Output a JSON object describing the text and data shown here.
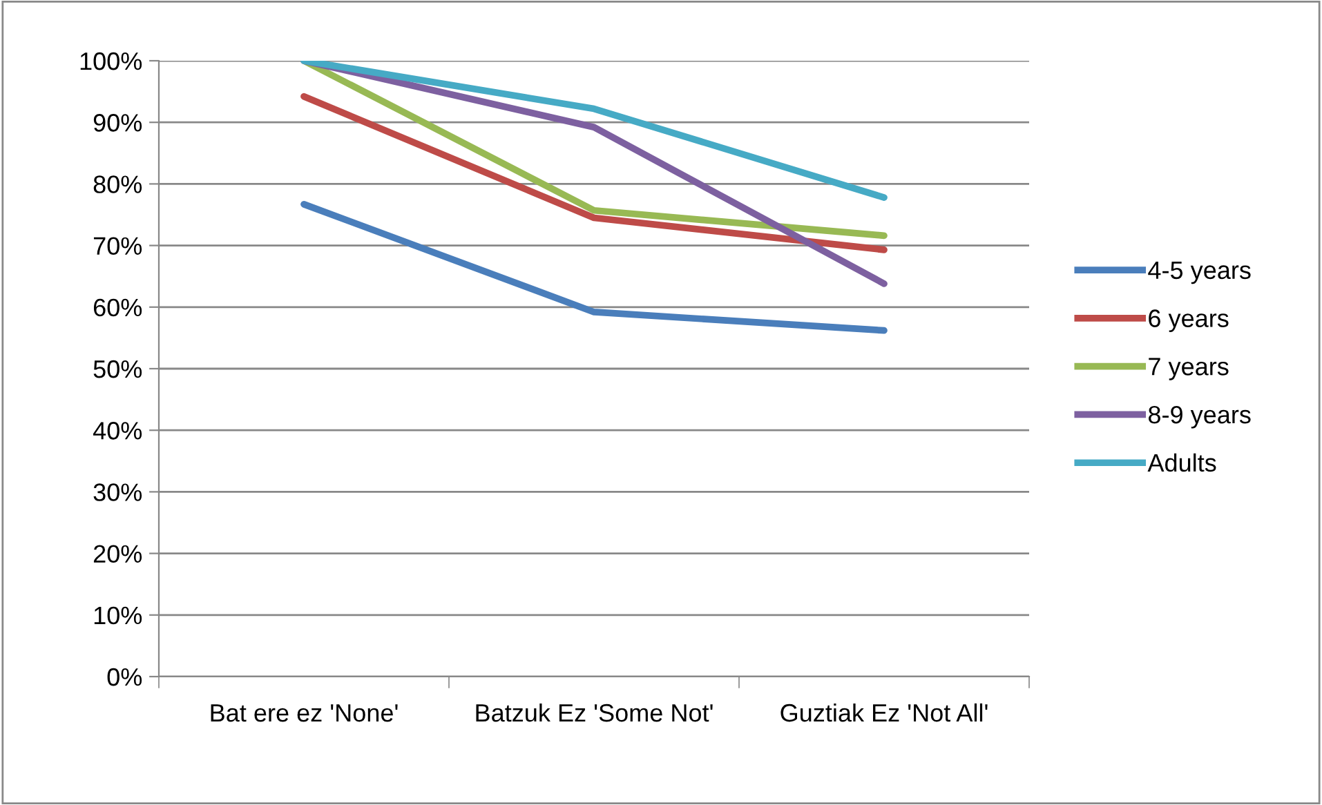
{
  "chart_data": {
    "type": "line",
    "categories": [
      "Bat ere ez 'None'",
      "Batzuk Ez 'Some Not'",
      "Guztiak Ez 'Not All'"
    ],
    "series": [
      {
        "name": "4-5 years",
        "color": "#4a7ebb",
        "values": [
          76.7,
          59.2,
          56.2
        ]
      },
      {
        "name": "6 years",
        "color": "#be4b48",
        "values": [
          94.2,
          74.5,
          69.3
        ]
      },
      {
        "name": "7 years",
        "color": "#98b954",
        "values": [
          100,
          75.7,
          71.6
        ]
      },
      {
        "name": "8-9 years",
        "color": "#7d60a0",
        "values": [
          100,
          89.2,
          63.8
        ]
      },
      {
        "name": "Adults",
        "color": "#46aac5",
        "values": [
          100,
          92.2,
          77.8
        ]
      }
    ],
    "ylim": [
      0,
      100
    ],
    "yticks": [
      {
        "value": 0,
        "label": "0%"
      },
      {
        "value": 10,
        "label": "10%"
      },
      {
        "value": 20,
        "label": "20%"
      },
      {
        "value": 30,
        "label": "30%"
      },
      {
        "value": 40,
        "label": "40%"
      },
      {
        "value": 50,
        "label": "50%"
      },
      {
        "value": 60,
        "label": "60%"
      },
      {
        "value": 70,
        "label": "70%"
      },
      {
        "value": 80,
        "label": "80%"
      },
      {
        "value": 90,
        "label": "90%"
      },
      {
        "value": 100,
        "label": "100%"
      }
    ],
    "grid": "y",
    "legend": "right",
    "marker": "none",
    "line_style": "solid"
  }
}
